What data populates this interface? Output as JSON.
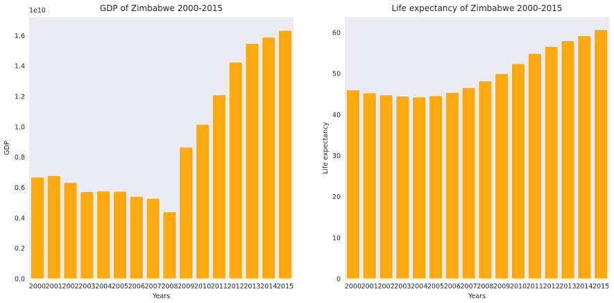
{
  "chart_data": [
    {
      "type": "bar",
      "title": "GDP of Zimbabwe 2000-2015",
      "xlabel": "Years",
      "ylabel": "GDP",
      "y_offset_label": "1e10",
      "categories": [
        "2000",
        "2001",
        "2002",
        "2003",
        "2004",
        "2005",
        "2006",
        "2007",
        "2008",
        "2009",
        "2010",
        "2011",
        "2012",
        "2013",
        "2014",
        "2015"
      ],
      "values": [
        0.669,
        0.678,
        0.634,
        0.573,
        0.578,
        0.575,
        0.542,
        0.529,
        0.441,
        0.866,
        1.016,
        1.21,
        1.425,
        1.549,
        1.589,
        1.634
      ],
      "ylim": [
        0,
        1.72
      ],
      "yticks": [
        0.0,
        0.2,
        0.4,
        0.6,
        0.8,
        1.0,
        1.2,
        1.4,
        1.6
      ],
      "ytick_labels": [
        "0.0",
        "0.2",
        "0.4",
        "0.6",
        "0.8",
        "1.0",
        "1.2",
        "1.4",
        "1.6"
      ],
      "bar_color": "#ffa500",
      "background": "#eaeaf2",
      "grid": false
    },
    {
      "type": "bar",
      "title": "Life expectancy of Zimbabwe 2000-2015",
      "xlabel": "Years",
      "ylabel": "Life expectancy",
      "categories": [
        "2000",
        "2001",
        "2002",
        "2003",
        "2004",
        "2005",
        "2006",
        "2007",
        "2008",
        "2009",
        "2010",
        "2011",
        "2012",
        "2013",
        "2014",
        "2015"
      ],
      "values": [
        46.0,
        45.3,
        44.8,
        44.5,
        44.3,
        44.6,
        45.4,
        46.6,
        48.2,
        50.0,
        52.4,
        54.9,
        56.6,
        58.0,
        59.2,
        60.7
      ],
      "ylim": [
        0,
        63.7
      ],
      "yticks": [
        0,
        10,
        20,
        30,
        40,
        50,
        60
      ],
      "ytick_labels": [
        "0",
        "10",
        "20",
        "30",
        "40",
        "50",
        "60"
      ],
      "bar_color": "#ffa500",
      "background": "#eaeaf2",
      "grid": false
    }
  ]
}
